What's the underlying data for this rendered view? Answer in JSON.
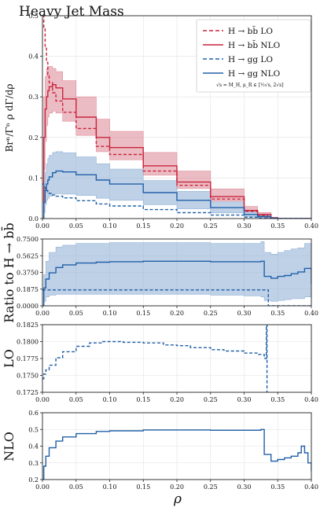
{
  "colors": {
    "bb": "#c8243c",
    "gg": "#2060a8",
    "bb_band": "#d9798a",
    "gg_band": "#7fa4d0"
  },
  "chart_data": [
    {
      "type": "line",
      "title": "Heavy Jet Mass",
      "ylabel": "Brⁿ/Γⁿ ρ dΓ/dρ",
      "xlim": [
        0,
        0.4
      ],
      "ylim": [
        0,
        0.5
      ],
      "xticks": [
        "0.00",
        "0.05",
        "0.10",
        "0.15",
        "0.20",
        "0.25",
        "0.30",
        "0.35",
        "0.40"
      ],
      "yticks": [
        "0.0",
        "0.1",
        "0.2",
        "0.3",
        "0.4",
        "0.5"
      ],
      "legend_position": "top-right",
      "legend_note": "√s = M_H, μ_R ∈ [½√s, 2√s]",
      "series": [
        {
          "name": "H → bb̄ LO",
          "style": "dashed",
          "color_key": "bb",
          "x": [
            0,
            0.002,
            0.004,
            0.006,
            0.008,
            0.01,
            0.015,
            0.02,
            0.03,
            0.05,
            0.08,
            0.1,
            0.15,
            0.2,
            0.25,
            0.3,
            0.32,
            0.335,
            0.34,
            0.4
          ],
          "values": [
            0.5,
            0.47,
            0.42,
            0.385,
            0.355,
            0.335,
            0.31,
            0.29,
            0.262,
            0.222,
            0.178,
            0.158,
            0.117,
            0.082,
            0.048,
            0.018,
            0.008,
            0.002,
            0,
            0
          ]
        },
        {
          "name": "H → bb̄ NLO",
          "style": "solid",
          "color_key": "bb",
          "x": [
            0,
            0.002,
            0.004,
            0.006,
            0.008,
            0.01,
            0.015,
            0.02,
            0.03,
            0.05,
            0.08,
            0.1,
            0.15,
            0.2,
            0.25,
            0.3,
            0.32,
            0.34,
            0.35,
            0.4
          ],
          "values": [
            0,
            0.2,
            0.27,
            0.3,
            0.315,
            0.325,
            0.33,
            0.322,
            0.295,
            0.25,
            0.2,
            0.175,
            0.13,
            0.09,
            0.054,
            0.02,
            0.01,
            0.002,
            0,
            0
          ]
        },
        {
          "name": "H → gg LO",
          "style": "dashed",
          "color_key": "gg",
          "x": [
            0,
            0.002,
            0.004,
            0.006,
            0.008,
            0.01,
            0.015,
            0.02,
            0.03,
            0.05,
            0.08,
            0.1,
            0.15,
            0.2,
            0.25,
            0.3,
            0.32,
            0.335,
            0.34,
            0.4
          ],
          "values": [
            0.085,
            0.08,
            0.074,
            0.069,
            0.066,
            0.062,
            0.058,
            0.055,
            0.051,
            0.044,
            0.036,
            0.031,
            0.022,
            0.0145,
            0.0085,
            0.0032,
            0.0014,
            0.0003,
            0,
            0
          ]
        },
        {
          "name": "H → gg NLO",
          "style": "solid",
          "color_key": "gg",
          "x": [
            0,
            0.002,
            0.004,
            0.006,
            0.008,
            0.01,
            0.015,
            0.02,
            0.03,
            0.05,
            0.08,
            0.1,
            0.15,
            0.2,
            0.25,
            0.3,
            0.32,
            0.34,
            0.35,
            0.4
          ],
          "values": [
            0,
            0.04,
            0.07,
            0.085,
            0.095,
            0.103,
            0.113,
            0.117,
            0.115,
            0.108,
            0.095,
            0.085,
            0.064,
            0.045,
            0.027,
            0.01,
            0.005,
            0.001,
            0,
            0
          ]
        }
      ],
      "bands": [
        {
          "of": "H → bb̄ NLO",
          "color_key": "bb_band",
          "x": [
            0,
            0.002,
            0.004,
            0.006,
            0.008,
            0.01,
            0.015,
            0.02,
            0.03,
            0.05,
            0.08,
            0.1,
            0.15,
            0.2,
            0.25,
            0.3,
            0.32,
            0.34,
            0.35,
            0.4
          ],
          "low": [
            0,
            0.12,
            0.19,
            0.23,
            0.25,
            0.26,
            0.265,
            0.26,
            0.24,
            0.205,
            0.165,
            0.145,
            0.107,
            0.074,
            0.043,
            0.016,
            0.007,
            0.001,
            0,
            0
          ],
          "high": [
            0,
            0.3,
            0.35,
            0.37,
            0.375,
            0.375,
            0.37,
            0.362,
            0.34,
            0.3,
            0.245,
            0.215,
            0.163,
            0.117,
            0.073,
            0.03,
            0.015,
            0.003,
            0,
            0
          ]
        },
        {
          "of": "H → gg NLO",
          "color_key": "gg_band",
          "x": [
            0,
            0.002,
            0.004,
            0.006,
            0.008,
            0.01,
            0.015,
            0.02,
            0.03,
            0.05,
            0.08,
            0.1,
            0.15,
            0.2,
            0.25,
            0.3,
            0.32,
            0.34,
            0.35,
            0.4
          ],
          "low": [
            0,
            0.015,
            0.035,
            0.045,
            0.05,
            0.055,
            0.06,
            0.061,
            0.06,
            0.057,
            0.05,
            0.045,
            0.034,
            0.024,
            0.014,
            0.005,
            0.0025,
            0.0005,
            0,
            0
          ],
          "high": [
            0,
            0.08,
            0.115,
            0.135,
            0.148,
            0.156,
            0.163,
            0.165,
            0.162,
            0.152,
            0.135,
            0.122,
            0.094,
            0.067,
            0.041,
            0.016,
            0.008,
            0.002,
            0,
            0
          ]
        }
      ]
    },
    {
      "type": "line",
      "ylabel": "Ratio to H → bb̄",
      "xlim": [
        0,
        0.4
      ],
      "ylim": [
        0,
        0.75
      ],
      "xticks": [
        "0.00",
        "0.05",
        "0.10",
        "0.15",
        "0.20",
        "0.25",
        "0.30",
        "0.35",
        "0.40"
      ],
      "yticks": [
        "0.0000",
        "0.1875",
        "0.3750",
        "0.5625",
        "0.7500"
      ],
      "series": [
        {
          "name": "H → gg LO",
          "style": "dashed",
          "color_key": "gg",
          "x": [
            0,
            0.335,
            0.336,
            0.4
          ],
          "values": [
            0.178,
            0.178,
            0,
            0
          ]
        },
        {
          "name": "H → gg NLO",
          "style": "solid",
          "color_key": "gg",
          "x": [
            0,
            0.002,
            0.005,
            0.01,
            0.02,
            0.03,
            0.05,
            0.08,
            0.1,
            0.15,
            0.2,
            0.25,
            0.3,
            0.325,
            0.33,
            0.34,
            0.35,
            0.36,
            0.37,
            0.38,
            0.39,
            0.4
          ],
          "values": [
            0,
            0.2,
            0.3,
            0.37,
            0.43,
            0.46,
            0.48,
            0.49,
            0.495,
            0.5,
            0.5,
            0.495,
            0.495,
            0.5,
            0.33,
            0.31,
            0.33,
            0.34,
            0.36,
            0.38,
            0.42,
            0.25
          ]
        }
      ],
      "bands": [
        {
          "of": "H → gg NLO",
          "color_key": "gg_band",
          "x": [
            0,
            0.002,
            0.005,
            0.01,
            0.02,
            0.03,
            0.05,
            0.08,
            0.1,
            0.15,
            0.2,
            0.25,
            0.3,
            0.325,
            0.33,
            0.34,
            0.35,
            0.36,
            0.37,
            0.38,
            0.39,
            0.4
          ],
          "low": [
            0,
            0.05,
            0.1,
            0.12,
            0.13,
            0.13,
            0.13,
            0.13,
            0.13,
            0.13,
            0.13,
            0.12,
            0.11,
            0.1,
            0.06,
            0.05,
            0.06,
            0.07,
            0.08,
            0.08,
            0.1,
            0.06
          ],
          "high": [
            0,
            0.35,
            0.5,
            0.6,
            0.66,
            0.68,
            0.7,
            0.7,
            0.71,
            0.71,
            0.71,
            0.7,
            0.7,
            0.72,
            0.6,
            0.58,
            0.6,
            0.62,
            0.64,
            0.65,
            0.7,
            0.6
          ]
        }
      ]
    },
    {
      "type": "line",
      "ylabel": "LO",
      "xlim": [
        0,
        0.4
      ],
      "ylim": [
        0.1725,
        0.1825
      ],
      "xticks": [
        "0.00",
        "0.05",
        "0.10",
        "0.15",
        "0.20",
        "0.25",
        "0.30",
        "0.35",
        "0.40"
      ],
      "yticks": [
        "0.1725",
        "0.1750",
        "0.1775",
        "0.1800",
        "0.1825"
      ],
      "series": [
        {
          "name": "H → gg LO",
          "style": "dashed",
          "color_key": "gg",
          "x": [
            0,
            0.002,
            0.005,
            0.01,
            0.02,
            0.03,
            0.05,
            0.07,
            0.09,
            0.1,
            0.12,
            0.15,
            0.18,
            0.2,
            0.22,
            0.25,
            0.27,
            0.3,
            0.32,
            0.33,
            0.333,
            0.334,
            0.335
          ],
          "values": [
            0.1745,
            0.1752,
            0.1758,
            0.1765,
            0.1776,
            0.1785,
            0.1793,
            0.1798,
            0.18,
            0.18,
            0.1799,
            0.1798,
            0.1795,
            0.1794,
            0.1791,
            0.1788,
            0.1786,
            0.1783,
            0.1781,
            0.1775,
            0.1825,
            0.1725,
            0.1725
          ]
        }
      ]
    },
    {
      "type": "line",
      "ylabel": "NLO",
      "xlabel": "ρ",
      "xlim": [
        0,
        0.4
      ],
      "ylim": [
        0.2,
        0.6
      ],
      "xticks": [
        "0.00",
        "0.05",
        "0.10",
        "0.15",
        "0.20",
        "0.25",
        "0.30",
        "0.35",
        "0.40"
      ],
      "yticks": [
        "0.2",
        "0.3",
        "0.4",
        "0.5",
        "0.6"
      ],
      "series": [
        {
          "name": "H → gg NLO",
          "style": "solid",
          "color_key": "gg",
          "x": [
            0,
            0.002,
            0.005,
            0.01,
            0.02,
            0.03,
            0.05,
            0.08,
            0.1,
            0.15,
            0.2,
            0.25,
            0.3,
            0.325,
            0.33,
            0.34,
            0.35,
            0.36,
            0.37,
            0.38,
            0.385,
            0.39,
            0.395,
            0.4
          ],
          "values": [
            0.2,
            0.28,
            0.34,
            0.39,
            0.43,
            0.455,
            0.475,
            0.488,
            0.492,
            0.497,
            0.497,
            0.495,
            0.495,
            0.5,
            0.35,
            0.31,
            0.32,
            0.33,
            0.34,
            0.36,
            0.4,
            0.36,
            0.3,
            0.25
          ]
        }
      ]
    }
  ]
}
